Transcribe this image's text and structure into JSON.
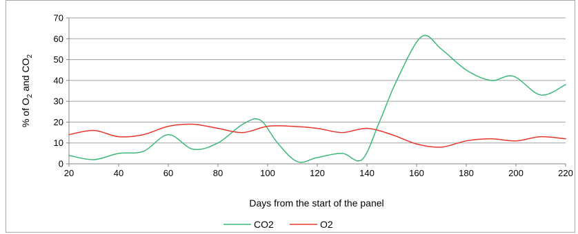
{
  "chart_data": {
    "type": "line",
    "title": "",
    "xlabel": "Days from the start of the panel",
    "ylabel": {
      "parts": [
        "% of O",
        "2",
        " and CO",
        "2"
      ]
    },
    "xlim": [
      20,
      220
    ],
    "ylim": [
      0,
      70
    ],
    "x_ticks": [
      20,
      40,
      60,
      80,
      100,
      120,
      140,
      160,
      180,
      200,
      220
    ],
    "y_ticks": [
      0,
      10,
      20,
      30,
      40,
      50,
      60,
      70
    ],
    "grid": "horizontal",
    "legend_position": "bottom",
    "series": [
      {
        "name": "CO2",
        "color": "#3cb878",
        "x": [
          20,
          30,
          40,
          50,
          60,
          70,
          80,
          90,
          97,
          104,
          112,
          120,
          130,
          138,
          145,
          152,
          162,
          170,
          180,
          190,
          199,
          210,
          220
        ],
        "y": [
          4,
          2,
          5,
          6,
          14,
          7,
          10,
          19,
          21,
          10,
          1,
          3,
          5,
          2,
          20,
          40,
          61,
          55,
          45,
          40,
          42,
          33,
          38
        ]
      },
      {
        "name": "O2",
        "color": "#e8362b",
        "x": [
          20,
          30,
          40,
          50,
          60,
          70,
          80,
          90,
          100,
          110,
          120,
          130,
          140,
          150,
          160,
          170,
          180,
          190,
          200,
          210,
          220
        ],
        "y": [
          14,
          16,
          13,
          14,
          18,
          19,
          17,
          15,
          18,
          18,
          17,
          15,
          17,
          14,
          9.5,
          8,
          11,
          12,
          11,
          13,
          12
        ]
      }
    ]
  }
}
